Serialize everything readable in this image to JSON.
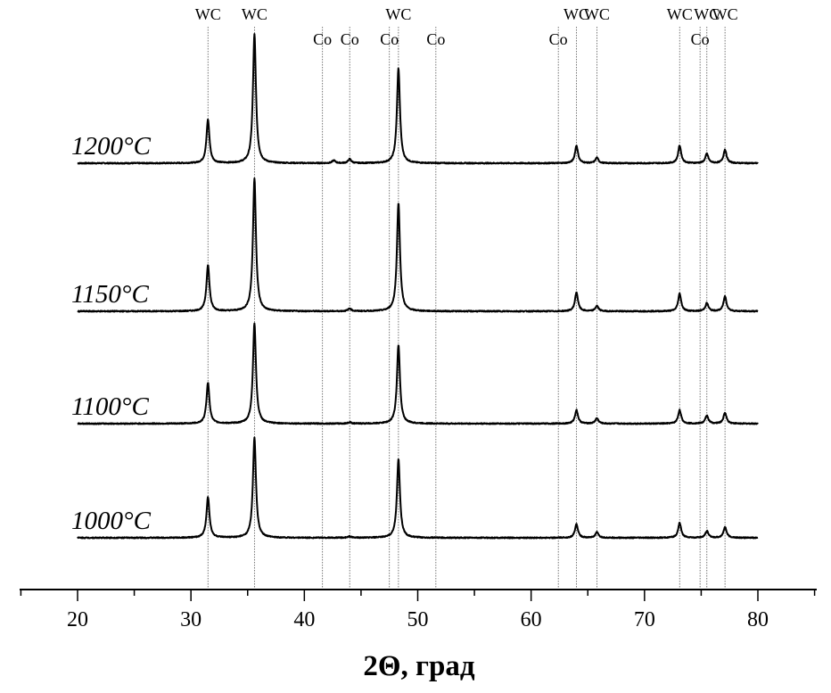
{
  "chart_data": {
    "type": "line",
    "title": "",
    "xlabel": "2Θ, град",
    "ylabel": "",
    "xlim": [
      15,
      85
    ],
    "x_ticks": [
      "20",
      "30",
      "40",
      "50",
      "60",
      "70",
      "80"
    ],
    "x_tick_values": [
      20,
      30,
      40,
      50,
      60,
      70,
      80
    ],
    "x_minor_step": 5,
    "grid": false,
    "legend": "none",
    "reference_lines": [
      {
        "phase": "WC",
        "x": 31.5
      },
      {
        "phase": "WC",
        "x": 35.6
      },
      {
        "phase": "Co",
        "x": 41.6
      },
      {
        "phase": "Co",
        "x": 44.0
      },
      {
        "phase": "Co",
        "x": 47.5
      },
      {
        "phase": "WC",
        "x": 48.3
      },
      {
        "phase": "Co",
        "x": 51.6
      },
      {
        "phase": "Co",
        "x": 62.4
      },
      {
        "phase": "WC",
        "x": 64.0
      },
      {
        "phase": "WC",
        "x": 65.8
      },
      {
        "phase": "WC",
        "x": 73.1
      },
      {
        "phase": "Co",
        "x": 74.9
      },
      {
        "phase": "WC",
        "x": 75.5
      },
      {
        "phase": "WC",
        "x": 77.1
      }
    ],
    "series": [
      {
        "name": "1200°C",
        "baseline": 0.0,
        "x_range": [
          20,
          80
        ],
        "peaks": [
          {
            "x": 31.5,
            "h": 0.32
          },
          {
            "x": 35.6,
            "h": 0.95
          },
          {
            "x": 42.6,
            "h": 0.02
          },
          {
            "x": 44.0,
            "h": 0.03
          },
          {
            "x": 48.3,
            "h": 0.7
          },
          {
            "x": 64.0,
            "h": 0.13
          },
          {
            "x": 65.8,
            "h": 0.04
          },
          {
            "x": 73.1,
            "h": 0.13
          },
          {
            "x": 75.5,
            "h": 0.07
          },
          {
            "x": 77.1,
            "h": 0.1
          }
        ]
      },
      {
        "name": "1150°C",
        "baseline": 0.0,
        "x_range": [
          20,
          80
        ],
        "peaks": [
          {
            "x": 31.5,
            "h": 0.34
          },
          {
            "x": 35.6,
            "h": 0.98
          },
          {
            "x": 44.0,
            "h": 0.02
          },
          {
            "x": 48.3,
            "h": 0.8
          },
          {
            "x": 64.0,
            "h": 0.14
          },
          {
            "x": 65.8,
            "h": 0.04
          },
          {
            "x": 73.1,
            "h": 0.13
          },
          {
            "x": 75.5,
            "h": 0.06
          },
          {
            "x": 77.1,
            "h": 0.11
          }
        ]
      },
      {
        "name": "1100°C",
        "baseline": 0.0,
        "x_range": [
          20,
          80
        ],
        "peaks": [
          {
            "x": 31.5,
            "h": 0.3
          },
          {
            "x": 35.6,
            "h": 0.74
          },
          {
            "x": 44.0,
            "h": 0.01
          },
          {
            "x": 48.3,
            "h": 0.58
          },
          {
            "x": 64.0,
            "h": 0.1
          },
          {
            "x": 65.8,
            "h": 0.04
          },
          {
            "x": 73.1,
            "h": 0.1
          },
          {
            "x": 75.5,
            "h": 0.06
          },
          {
            "x": 77.1,
            "h": 0.08
          }
        ]
      },
      {
        "name": "1000°C",
        "baseline": 0.0,
        "x_range": [
          20,
          80
        ],
        "peaks": [
          {
            "x": 31.5,
            "h": 0.3
          },
          {
            "x": 35.6,
            "h": 0.74
          },
          {
            "x": 44.0,
            "h": 0.01
          },
          {
            "x": 48.3,
            "h": 0.58
          },
          {
            "x": 64.0,
            "h": 0.1
          },
          {
            "x": 65.8,
            "h": 0.04
          },
          {
            "x": 73.1,
            "h": 0.11
          },
          {
            "x": 75.5,
            "h": 0.05
          },
          {
            "x": 77.1,
            "h": 0.08
          }
        ]
      }
    ]
  }
}
